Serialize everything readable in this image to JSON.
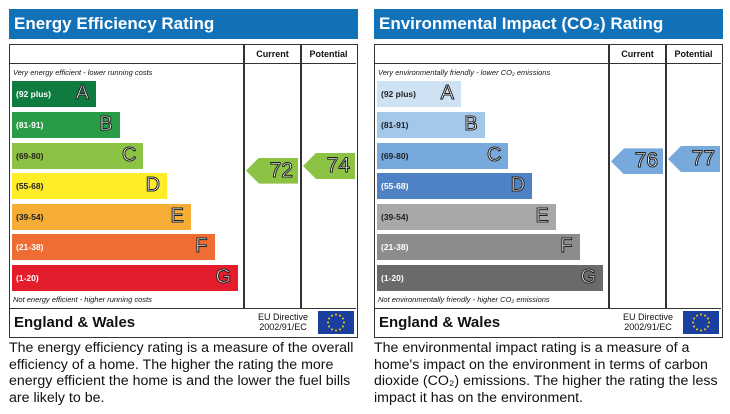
{
  "chart_data": [
    {
      "type": "bar",
      "title": "Energy Efficiency Rating",
      "columns": [
        "Current",
        "Potential"
      ],
      "top_caption": "Very energy efficient - lower running costs",
      "bottom_caption": "Not energy efficient - higher running costs",
      "bands": [
        {
          "range": "(92 plus)",
          "letter": "A",
          "color": "#0f7b40"
        },
        {
          "range": "(81-91)",
          "letter": "B",
          "color": "#2a9b46"
        },
        {
          "range": "(69-80)",
          "letter": "C",
          "color": "#8dc344",
          "dark": true
        },
        {
          "range": "(55-68)",
          "letter": "D",
          "color": "#ffed29",
          "dark": true
        },
        {
          "range": "(39-54)",
          "letter": "E",
          "color": "#f6ad35",
          "dark": true
        },
        {
          "range": "(21-38)",
          "letter": "F",
          "color": "#ef6d32"
        },
        {
          "range": "(1-20)",
          "letter": "G",
          "color": "#e31d2b"
        }
      ],
      "current": 72,
      "potential": 74,
      "arrow_color": "#8dc344",
      "footer": {
        "region": "England & Wales",
        "directive_line1": "EU Directive",
        "directive_line2": "2002/91/EC"
      },
      "description": "The energy efficiency rating is a measure of the overall efficiency of a home. The higher the rating the more energy efficient the home is and the lower the fuel bills are likely to be."
    },
    {
      "type": "bar",
      "title": "Environmental Impact (CO₂) Rating",
      "columns": [
        "Current",
        "Potential"
      ],
      "top_caption": "Very environmentally friendly - lower CO₂ emissions",
      "bottom_caption": "Not environmentally friendly - higher CO₂ emissions",
      "bands": [
        {
          "range": "(92 plus)",
          "letter": "A",
          "color": "#cfe2f3",
          "dark": true
        },
        {
          "range": "(81-91)",
          "letter": "B",
          "color": "#a4c8ec",
          "dark": true
        },
        {
          "range": "(69-80)",
          "letter": "C",
          "color": "#77a9dc",
          "dark": true
        },
        {
          "range": "(55-68)",
          "letter": "D",
          "color": "#4f82c4"
        },
        {
          "range": "(39-54)",
          "letter": "E",
          "color": "#a8a8a8",
          "dark": true
        },
        {
          "range": "(21-38)",
          "letter": "F",
          "color": "#8c8c8c"
        },
        {
          "range": "(1-20)",
          "letter": "G",
          "color": "#6a6a6a"
        }
      ],
      "current": 76,
      "potential": 77,
      "arrow_color": "#77a9dc",
      "footer": {
        "region": "England & Wales",
        "directive_line1": "EU Directive",
        "directive_line2": "2002/91/EC"
      },
      "description": "The environmental impact rating is a measure of a home's impact on the environment in terms of carbon dioxide (CO₂) emissions. The higher the rating the less impact it has on the environment."
    }
  ]
}
